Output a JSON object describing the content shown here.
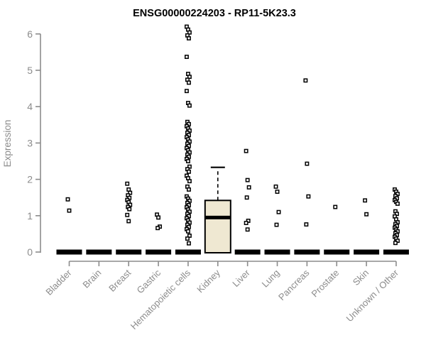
{
  "page": {
    "background": "#FFFFFF"
  },
  "chart_data": {
    "type": "boxplot-scatter",
    "title": "ENSG00000224203 - RP11-5K23.3",
    "ylabel": "Expression",
    "xlabel": "",
    "ylim": [
      0,
      6.3
    ],
    "yticks": [
      0,
      1,
      2,
      3,
      4,
      5,
      6
    ],
    "grid": false,
    "legend": null,
    "colors": {
      "box_fill": "#EFE8D2",
      "box_stroke": "#000000",
      "point": "#000000",
      "axis": "#8C8C8C",
      "title": "#000000"
    },
    "categories": [
      "Bladder",
      "Brain",
      "Breast",
      "Gastric",
      "Hematopoietic cells",
      "Kidney",
      "Liver",
      "Lung",
      "Pancreas",
      "Prostate",
      "Skin",
      "Unknown / Other"
    ],
    "boxes": [
      {
        "category": "Bladder",
        "q1": 0,
        "median": 0,
        "q3": 0,
        "whisker_low": 0,
        "whisker_high": 0
      },
      {
        "category": "Brain",
        "q1": 0,
        "median": 0,
        "q3": 0,
        "whisker_low": 0,
        "whisker_high": 0
      },
      {
        "category": "Breast",
        "q1": 0,
        "median": 0,
        "q3": 0,
        "whisker_low": 0,
        "whisker_high": 0
      },
      {
        "category": "Gastric",
        "q1": 0,
        "median": 0,
        "q3": 0,
        "whisker_low": 0,
        "whisker_high": 0
      },
      {
        "category": "Hematopoietic cells",
        "q1": 0,
        "median": 0,
        "q3": 0,
        "whisker_low": 0,
        "whisker_high": 0
      },
      {
        "category": "Kidney",
        "q1": 0,
        "median": 0.95,
        "q3": 1.42,
        "whisker_low": 0,
        "whisker_high": 2.33
      },
      {
        "category": "Liver",
        "q1": 0,
        "median": 0,
        "q3": 0,
        "whisker_low": 0,
        "whisker_high": 0
      },
      {
        "category": "Lung",
        "q1": 0,
        "median": 0,
        "q3": 0,
        "whisker_low": 0,
        "whisker_high": 0
      },
      {
        "category": "Pancreas",
        "q1": 0,
        "median": 0,
        "q3": 0,
        "whisker_low": 0,
        "whisker_high": 0
      },
      {
        "category": "Prostate",
        "q1": 0,
        "median": 0,
        "q3": 0,
        "whisker_low": 0,
        "whisker_high": 0
      },
      {
        "category": "Skin",
        "q1": 0,
        "median": 0,
        "q3": 0,
        "whisker_low": 0,
        "whisker_high": 0
      },
      {
        "category": "Unknown / Other",
        "q1": 0,
        "median": 0,
        "q3": 0,
        "whisker_low": 0,
        "whisker_high": 0
      }
    ],
    "points": {
      "Bladder": [
        1.45,
        1.14
      ],
      "Brain": [],
      "Breast": [
        1.88,
        1.72,
        1.63,
        1.56,
        1.49,
        1.43,
        1.37,
        1.3,
        1.24,
        1.18,
        1.02,
        0.85
      ],
      "Gastric": [
        1.03,
        0.95,
        0.7,
        0.66
      ],
      "Hematopoietic cells": [
        6.2,
        6.12,
        6.04,
        5.96,
        5.88,
        5.37,
        4.9,
        4.82,
        4.74,
        4.66,
        4.43,
        4.1,
        4.03,
        3.58,
        3.52,
        3.46,
        3.4,
        3.34,
        3.28,
        3.22,
        3.16,
        3.1,
        3.04,
        2.98,
        2.92,
        2.86,
        2.8,
        2.74,
        2.68,
        2.62,
        2.56,
        2.5,
        2.35,
        2.28,
        2.21,
        2.1,
        2.03,
        1.95,
        1.8,
        1.72,
        1.53,
        1.47,
        1.41,
        1.35,
        1.29,
        1.23,
        1.17,
        1.11,
        1.05,
        0.99,
        0.93,
        0.87,
        0.81,
        0.75,
        0.69,
        0.63,
        0.57,
        0.45,
        0.37,
        0.24
      ],
      "Kidney": [],
      "Liver": [
        2.78,
        1.98,
        1.78,
        1.5,
        0.86,
        0.8,
        0.62
      ],
      "Lung": [
        1.8,
        1.66,
        1.1,
        0.75
      ],
      "Pancreas": [
        4.72,
        2.43,
        1.53,
        0.76
      ],
      "Prostate": [
        1.24
      ],
      "Skin": [
        1.42,
        1.04
      ],
      "Unknown / Other": [
        1.72,
        1.66,
        1.6,
        1.54,
        1.48,
        1.43,
        1.38,
        1.33,
        1.12,
        1.05,
        0.98,
        0.9,
        0.82,
        0.77,
        0.72,
        0.67,
        0.62,
        0.57,
        0.52,
        0.47,
        0.42,
        0.37,
        0.31,
        0.25
      ]
    }
  }
}
